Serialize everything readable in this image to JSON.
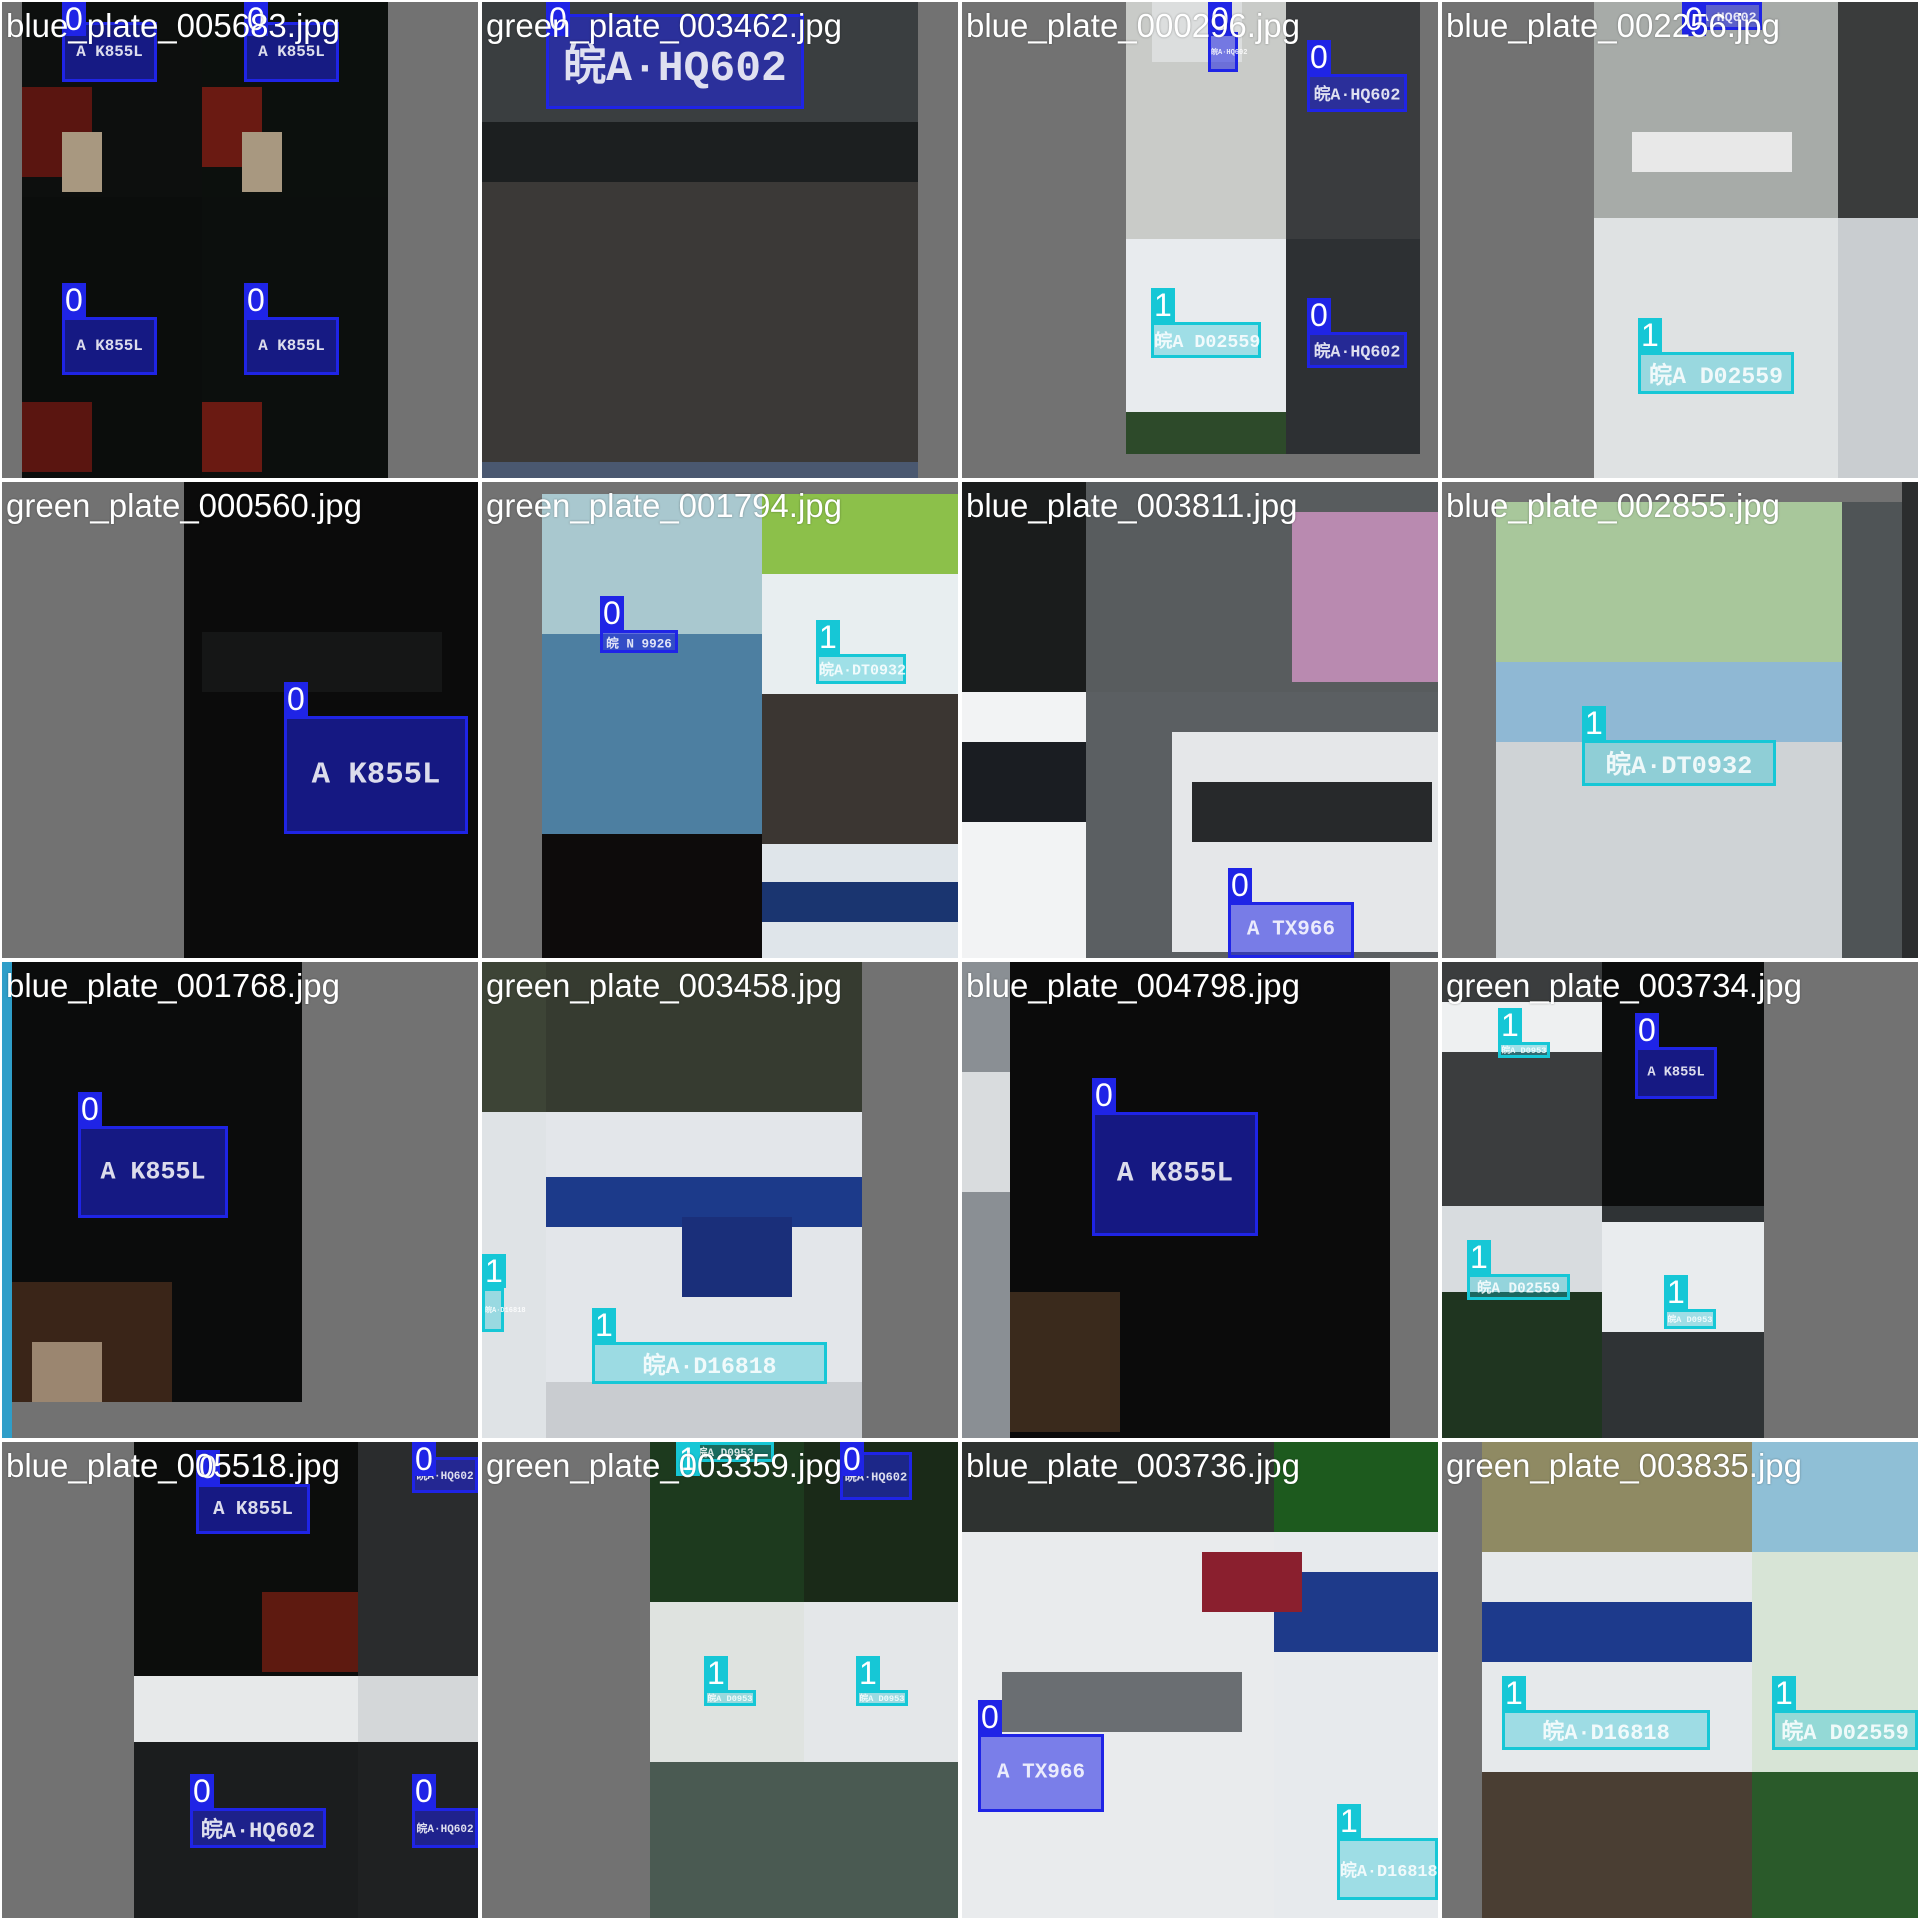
{
  "classes": {
    "0": {
      "label": "0",
      "color": "#1f24e6"
    },
    "1": {
      "label": "1",
      "color": "#16c7d6"
    }
  },
  "tiles": [
    {
      "caption": "blue_plate_005683.jpg"
    },
    {
      "caption": "green_plate_003462.jpg"
    },
    {
      "caption": "blue_plate_000296.jpg"
    },
    {
      "caption": "blue_plate_002256.jpg"
    },
    {
      "caption": "green_plate_000560.jpg"
    },
    {
      "caption": "green_plate_001794.jpg"
    },
    {
      "caption": "blue_plate_003811.jpg"
    },
    {
      "caption": "blue_plate_002855.jpg"
    },
    {
      "caption": "blue_plate_001768.jpg"
    },
    {
      "caption": "green_plate_003458.jpg"
    },
    {
      "caption": "blue_plate_004798.jpg"
    },
    {
      "caption": "green_plate_003734.jpg"
    },
    {
      "caption": "blue_plate_005518.jpg"
    },
    {
      "caption": "green_plate_003359.jpg"
    },
    {
      "caption": "blue_plate_003736.jpg"
    },
    {
      "caption": "green_plate_003835.jpg"
    }
  ],
  "plates": {
    "k855l": "A K855L",
    "hq602": "皖A·HQ602",
    "d02559": "皖A D02559",
    "dt0932": "皖A·DT0932",
    "tx966": "A TX966",
    "d16818": "皖A·D16818",
    "n9926": "皖 N 9926",
    "d0953": "皖A D0953"
  }
}
